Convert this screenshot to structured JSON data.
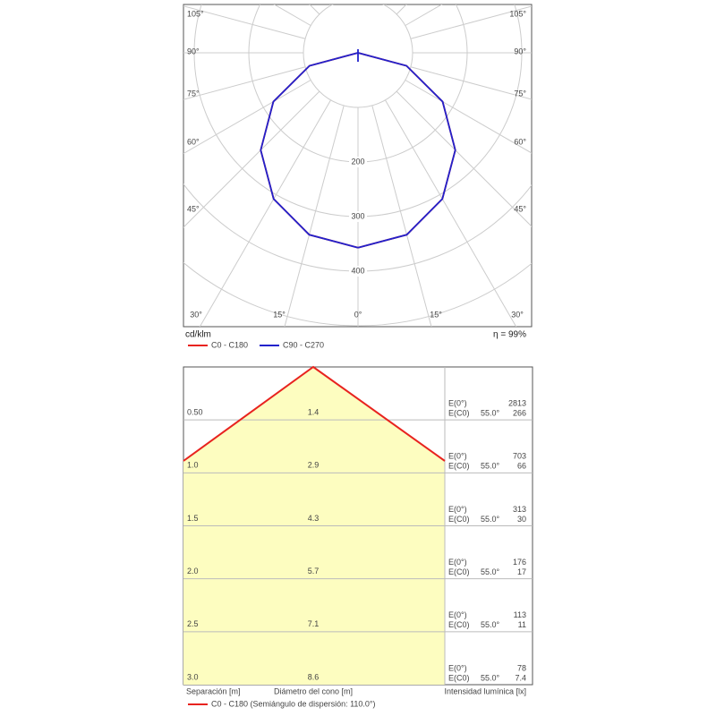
{
  "polar": {
    "unit_label": "cd/klm",
    "efficiency": "η = 99%",
    "side_labels": [
      "105°",
      "90°",
      "75°",
      "60°",
      "45°"
    ],
    "bottom_labels": [
      "30°",
      "15°",
      "0°",
      "15°",
      "30°"
    ],
    "ring_labels": [
      "200",
      "300",
      "400"
    ],
    "ring_values": [
      100,
      200,
      300,
      400,
      500,
      600,
      700
    ],
    "curves": [
      {
        "name": "C0 - C180",
        "color": "#e8231f",
        "angles": [
          0,
          15,
          30,
          45,
          60,
          75,
          90
        ],
        "values": [
          357,
          345,
          309,
          252,
          179,
          92,
          0
        ]
      },
      {
        "name": "C90 - C270",
        "color": "#2222cc",
        "angles": [
          0,
          15,
          30,
          45,
          60,
          75,
          90
        ],
        "values": [
          357,
          345,
          309,
          252,
          179,
          92,
          0
        ]
      }
    ]
  },
  "cone": {
    "e0_label": "E(0°)",
    "ec0_label": "E(C0)",
    "angle_label": "55.0°",
    "rows": [
      {
        "distance": "0.50",
        "diameter": "1.4",
        "e0": "2813",
        "ec0": "266"
      },
      {
        "distance": "1.0",
        "diameter": "2.9",
        "e0": "703",
        "ec0": "66"
      },
      {
        "distance": "1.5",
        "diameter": "4.3",
        "e0": "313",
        "ec0": "30"
      },
      {
        "distance": "2.0",
        "diameter": "5.7",
        "e0": "176",
        "ec0": "17"
      },
      {
        "distance": "2.5",
        "diameter": "7.1",
        "e0": "113",
        "ec0": "11"
      },
      {
        "distance": "3.0",
        "diameter": "8.6",
        "e0": "78",
        "ec0": "7.4"
      }
    ],
    "x_label_left": "Separación [m]",
    "x_label_center": "Diámetro del cono [m]",
    "x_label_right": "Intensidad lumínica [lx]",
    "legend": "C0 - C180 (Semiángulo de dispersión: 110.0°)"
  }
}
